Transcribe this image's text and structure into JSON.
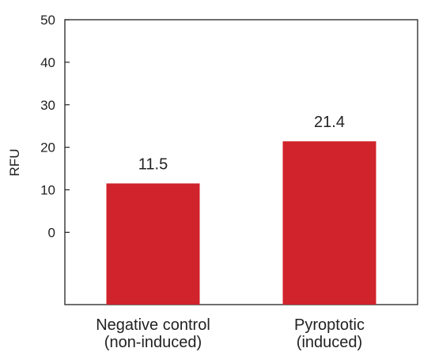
{
  "chart_data": {
    "type": "bar",
    "categories": [
      {
        "line1": "Negative control",
        "line2": "(non-induced)"
      },
      {
        "line1": "Pyroptotic",
        "line2": "(induced)"
      }
    ],
    "values": [
      11.5,
      21.4
    ],
    "data_labels": [
      "11.5",
      "21.4"
    ],
    "title": "",
    "xlabel": "",
    "ylabel": "RFU",
    "yticks": [
      0,
      10,
      20,
      30,
      40,
      50
    ],
    "ytick_labels": [
      "0",
      "10",
      "20",
      "30",
      "40",
      "50"
    ],
    "ylim": [
      -17,
      50
    ],
    "grid": false,
    "legend": "none",
    "bar_color": "#d0232b"
  }
}
